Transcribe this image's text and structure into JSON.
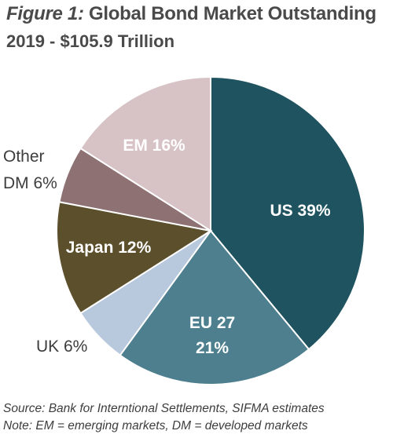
{
  "header": {
    "figure_label": "Figure 1:",
    "title": "Global Bond Market Outstanding",
    "subtitle": "2019 - $105.9 Trillion"
  },
  "chart_data": {
    "type": "pie",
    "title": "Global Bond Market Outstanding",
    "subtitle": "2019 - $105.9 Trillion",
    "slices": [
      {
        "name": "US",
        "value": 39,
        "label": "US 39%",
        "color": "#1f5360",
        "label_color": "#ffffff"
      },
      {
        "name": "EU 27",
        "value": 21,
        "label": "EU 27 21%",
        "color": "#4d7f8f",
        "label_color": "#ffffff"
      },
      {
        "name": "UK",
        "value": 6,
        "label": "UK 6%",
        "color": "#b8c9dd",
        "label_color": "#3d3d3d"
      },
      {
        "name": "Japan",
        "value": 12,
        "label": "Japan 12%",
        "color": "#5c4f2c",
        "label_color": "#ffffff"
      },
      {
        "name": "Other DM",
        "value": 6,
        "label": "Other DM 6%",
        "color": "#8e7173",
        "label_color": "#3d3d3d"
      },
      {
        "name": "EM",
        "value": 16,
        "label": "EM 16%",
        "color": "#d7c2c6",
        "label_color": "#ffffff"
      }
    ],
    "start_angle": "12 o'clock",
    "direction": "clockwise",
    "legend": "none"
  },
  "labels": {
    "us": "US 39%",
    "eu_line1": "EU 27",
    "eu_line2": "21%",
    "uk": "UK 6%",
    "japan": "Japan 12%",
    "other_line1": "Other",
    "other_line2": "DM 6%",
    "em": "EM 16%"
  },
  "footer": {
    "source": "Source: Bank for Interntional Settlements, SIFMA estimates",
    "note": "Note: EM = emerging markets, DM = developed markets"
  }
}
